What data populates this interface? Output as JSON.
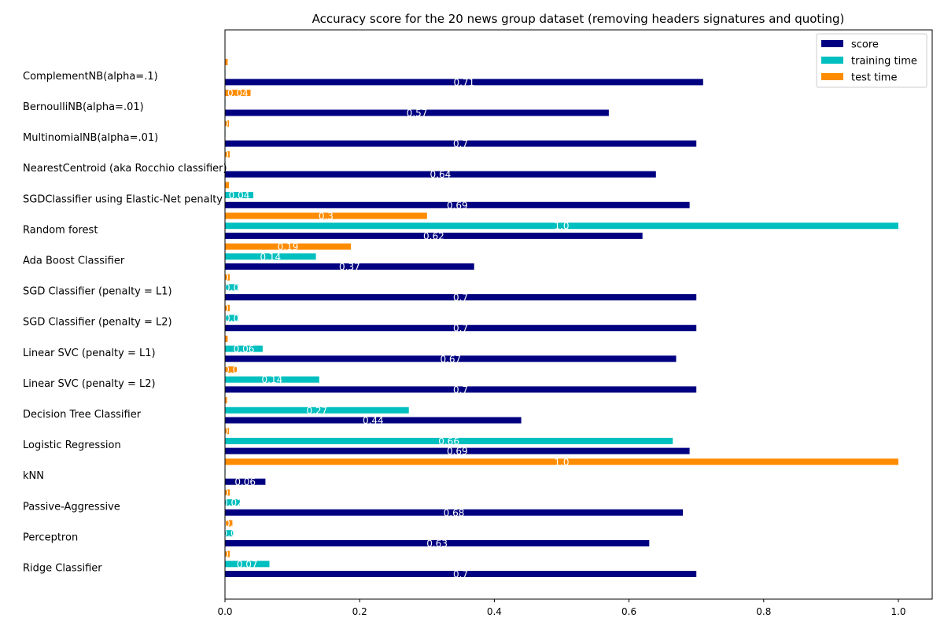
{
  "chart_data": {
    "type": "bar",
    "orientation": "horizontal",
    "title": "Accuracy score for the 20 news group dataset (removing headers signatures and quoting)",
    "xlabel": "",
    "ylabel": "",
    "xlim": [
      0,
      1.05
    ],
    "xticks": [
      "0.0",
      "0.2",
      "0.4",
      "0.6",
      "0.8",
      "1.0"
    ],
    "grid": false,
    "legend_position": "top-right",
    "categories": [
      "Ridge Classifier",
      "Perceptron",
      "Passive-Aggressive",
      "kNN",
      "Logistic Regression",
      "Decision Tree Classifier",
      "Linear SVC (penalty = L2)",
      "Linear SVC (penalty = L1)",
      "SGD Classifier (penalty = L2)",
      "SGD Classifier (penalty = L1)",
      "Ada Boost Classifier",
      "Random forest",
      "SGDClassifier using Elastic-Net penalty",
      "NearestCentroid (aka Rocchio classifier)",
      "MultinomialNB(alpha=.01)",
      "BernoulliNB(alpha=.01)",
      "ComplementNB(alpha=.1)"
    ],
    "series": [
      {
        "name": "score",
        "color": "#000080",
        "values": [
          0.7,
          0.63,
          0.68,
          0.06,
          0.69,
          0.44,
          0.7,
          0.67,
          0.7,
          0.7,
          0.37,
          0.62,
          0.69,
          0.64,
          0.7,
          0.57,
          0.71
        ],
        "labels": [
          "0.7",
          "0.63",
          "0.68",
          "0.06",
          "0.69",
          "0.44",
          "0.7",
          "0.67",
          "0.7",
          "0.7",
          "0.37",
          "0.62",
          "0.69",
          "0.64",
          "0.7",
          "0.57",
          "0.71"
        ]
      },
      {
        "name": "training time",
        "color": "#00bfbf",
        "values": [
          0.066,
          0.012,
          0.022,
          0.0,
          0.665,
          0.273,
          0.14,
          0.056,
          0.02,
          0.02,
          0.135,
          1.0,
          0.042,
          0.0,
          0.0,
          0.0,
          0.0
        ],
        "labels": [
          "0.07",
          "0.0",
          "0.02",
          "",
          "0.66",
          "0.27",
          "0.14",
          "0.06",
          "0.0",
          "0.0",
          "0.14",
          "1.0",
          "0.04",
          "",
          "",
          "",
          ""
        ]
      },
      {
        "name": "test time",
        "color": "#ff8c00",
        "values": [
          0.007,
          0.011,
          0.007,
          1.0,
          0.006,
          0.003,
          0.018,
          0.004,
          0.007,
          0.007,
          0.187,
          0.3,
          0.006,
          0.007,
          0.006,
          0.038,
          0.004
        ],
        "labels": [
          "0.",
          "0.",
          "0.",
          "1.0",
          "0.",
          "",
          "0.0",
          "",
          "0.",
          "0.",
          "0.19",
          "0.3",
          "",
          "0.",
          "0.",
          "0.04",
          ""
        ]
      }
    ]
  }
}
